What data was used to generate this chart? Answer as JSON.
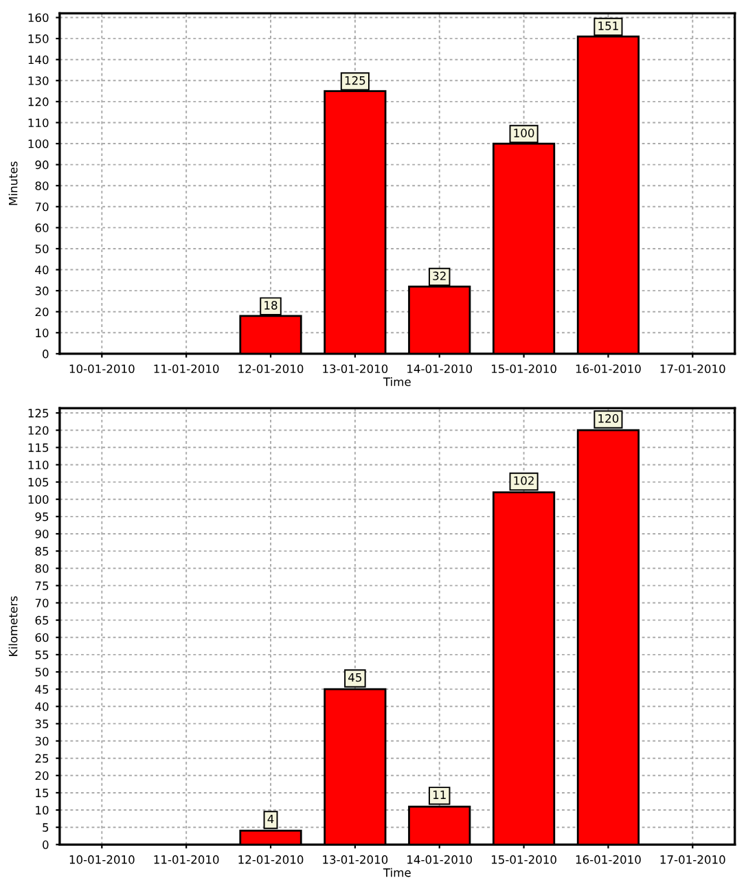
{
  "chart_data": [
    {
      "type": "bar",
      "xlabel": "Time",
      "ylabel": "Minutes",
      "categories": [
        "10-01-2010",
        "11-01-2010",
        "12-01-2010",
        "13-01-2010",
        "14-01-2010",
        "15-01-2010",
        "16-01-2010",
        "17-01-2010"
      ],
      "values": [
        null,
        null,
        18,
        125,
        32,
        100,
        151,
        null
      ],
      "value_labels": [
        null,
        null,
        "18",
        "125",
        "32",
        "100",
        "151",
        null
      ],
      "color": "#ff0000",
      "ylim": [
        0,
        162
      ],
      "yticks": [
        0,
        10,
        20,
        30,
        40,
        50,
        60,
        70,
        80,
        90,
        100,
        110,
        120,
        130,
        140,
        150,
        160
      ],
      "grid": true
    },
    {
      "type": "bar",
      "xlabel": "Time",
      "ylabel": "Kilometers",
      "categories": [
        "10-01-2010",
        "11-01-2010",
        "12-01-2010",
        "13-01-2010",
        "14-01-2010",
        "15-01-2010",
        "16-01-2010",
        "17-01-2010"
      ],
      "values": [
        null,
        null,
        4,
        45,
        11,
        102,
        120,
        null
      ],
      "value_labels": [
        null,
        null,
        "4",
        "45",
        "11",
        "102",
        "120",
        null
      ],
      "color": "#ff0000",
      "ylim": [
        0,
        126.4
      ],
      "yticks": [
        0,
        5,
        10,
        15,
        20,
        25,
        30,
        35,
        40,
        45,
        50,
        55,
        60,
        65,
        70,
        75,
        80,
        85,
        90,
        95,
        100,
        105,
        110,
        115,
        120,
        125
      ],
      "grid": true
    }
  ]
}
